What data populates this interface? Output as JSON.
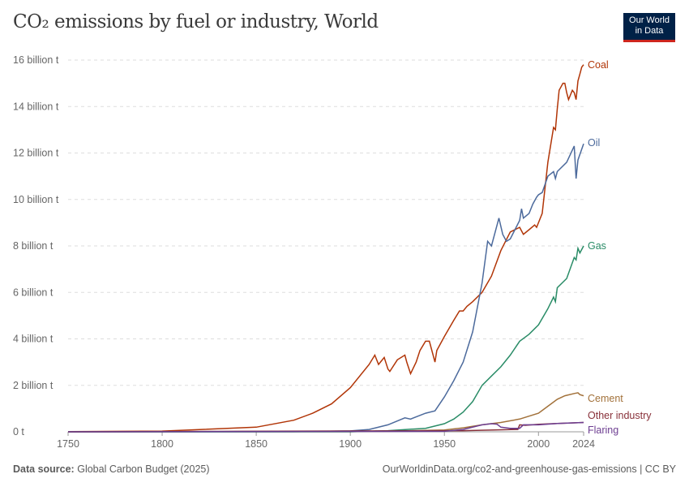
{
  "title": "CO₂ emissions by fuel or industry, World",
  "logo": {
    "line1": "Our World",
    "line2": "in Data"
  },
  "footer": {
    "source_label": "Data source:",
    "source": "Global Carbon Budget (2025)",
    "url": "OurWorldinData.org/co2-and-greenhouse-gas-emissions | CC BY"
  },
  "chart_data": {
    "type": "line",
    "title": "CO₂ emissions by fuel or industry, World",
    "xlim": [
      1750,
      2024
    ],
    "ylim": [
      0,
      16
    ],
    "x_ticks": [
      1750,
      1800,
      1850,
      1900,
      1950,
      2000,
      2024
    ],
    "y_ticks": [
      {
        "v": 0,
        "label": "0 t"
      },
      {
        "v": 2,
        "label": "2 billion t"
      },
      {
        "v": 4,
        "label": "4 billion t"
      },
      {
        "v": 6,
        "label": "6 billion t"
      },
      {
        "v": 8,
        "label": "8 billion t"
      },
      {
        "v": 10,
        "label": "10 billion t"
      },
      {
        "v": 12,
        "label": "12 billion t"
      },
      {
        "v": 14,
        "label": "14 billion t"
      },
      {
        "v": 16,
        "label": "16 billion t"
      }
    ],
    "grid": "horizontal dashed",
    "legend": "line-end labels right",
    "unit": "billion t",
    "series": [
      {
        "name": "Coal",
        "color": "#b13507",
        "points": [
          [
            1750,
            0.01
          ],
          [
            1800,
            0.03
          ],
          [
            1850,
            0.2
          ],
          [
            1870,
            0.5
          ],
          [
            1880,
            0.8
          ],
          [
            1890,
            1.2
          ],
          [
            1900,
            1.9
          ],
          [
            1910,
            2.9
          ],
          [
            1913,
            3.3
          ],
          [
            1915,
            2.9
          ],
          [
            1918,
            3.2
          ],
          [
            1920,
            2.7
          ],
          [
            1921,
            2.6
          ],
          [
            1925,
            3.1
          ],
          [
            1929,
            3.3
          ],
          [
            1930,
            3.0
          ],
          [
            1932,
            2.5
          ],
          [
            1935,
            3.0
          ],
          [
            1937,
            3.5
          ],
          [
            1940,
            3.9
          ],
          [
            1942,
            3.9
          ],
          [
            1945,
            3.0
          ],
          [
            1946,
            3.5
          ],
          [
            1950,
            4.1
          ],
          [
            1955,
            4.8
          ],
          [
            1958,
            5.2
          ],
          [
            1960,
            5.2
          ],
          [
            1962,
            5.4
          ],
          [
            1965,
            5.6
          ],
          [
            1970,
            6.0
          ],
          [
            1975,
            6.7
          ],
          [
            1980,
            7.8
          ],
          [
            1985,
            8.6
          ],
          [
            1990,
            8.8
          ],
          [
            1992,
            8.5
          ],
          [
            1995,
            8.7
          ],
          [
            1998,
            8.9
          ],
          [
            1999,
            8.8
          ],
          [
            2000,
            9.0
          ],
          [
            2002,
            9.4
          ],
          [
            2005,
            11.6
          ],
          [
            2008,
            13.1
          ],
          [
            2009,
            13.0
          ],
          [
            2010,
            13.9
          ],
          [
            2011,
            14.7
          ],
          [
            2013,
            15.0
          ],
          [
            2014,
            15.0
          ],
          [
            2015,
            14.6
          ],
          [
            2016,
            14.3
          ],
          [
            2018,
            14.7
          ],
          [
            2019,
            14.6
          ],
          [
            2020,
            14.3
          ],
          [
            2021,
            15.1
          ],
          [
            2022,
            15.4
          ],
          [
            2023,
            15.7
          ],
          [
            2024,
            15.8
          ]
        ]
      },
      {
        "name": "Oil",
        "color": "#4c6a9c",
        "points": [
          [
            1750,
            0
          ],
          [
            1870,
            0.002
          ],
          [
            1900,
            0.04
          ],
          [
            1910,
            0.1
          ],
          [
            1920,
            0.3
          ],
          [
            1929,
            0.6
          ],
          [
            1932,
            0.55
          ],
          [
            1940,
            0.8
          ],
          [
            1945,
            0.9
          ],
          [
            1950,
            1.5
          ],
          [
            1955,
            2.2
          ],
          [
            1960,
            3.0
          ],
          [
            1965,
            4.3
          ],
          [
            1970,
            6.4
          ],
          [
            1973,
            8.2
          ],
          [
            1975,
            8.0
          ],
          [
            1979,
            9.2
          ],
          [
            1981,
            8.5
          ],
          [
            1983,
            8.2
          ],
          [
            1985,
            8.3
          ],
          [
            1990,
            9.1
          ],
          [
            1991,
            9.6
          ],
          [
            1992,
            9.2
          ],
          [
            1995,
            9.4
          ],
          [
            1997,
            9.8
          ],
          [
            1999,
            10.1
          ],
          [
            2000,
            10.2
          ],
          [
            2002,
            10.3
          ],
          [
            2005,
            11.0
          ],
          [
            2008,
            11.2
          ],
          [
            2009,
            10.9
          ],
          [
            2010,
            11.2
          ],
          [
            2015,
            11.6
          ],
          [
            2019,
            12.3
          ],
          [
            2020,
            10.9
          ],
          [
            2021,
            11.7
          ],
          [
            2024,
            12.4
          ]
        ]
      },
      {
        "name": "Gas",
        "color": "#2a8c67",
        "points": [
          [
            1750,
            0
          ],
          [
            1900,
            0.0
          ],
          [
            1920,
            0.05
          ],
          [
            1930,
            0.1
          ],
          [
            1940,
            0.15
          ],
          [
            1950,
            0.35
          ],
          [
            1955,
            0.55
          ],
          [
            1960,
            0.85
          ],
          [
            1965,
            1.3
          ],
          [
            1970,
            2.0
          ],
          [
            1975,
            2.4
          ],
          [
            1980,
            2.8
          ],
          [
            1985,
            3.3
          ],
          [
            1990,
            3.9
          ],
          [
            1995,
            4.2
          ],
          [
            2000,
            4.6
          ],
          [
            2005,
            5.3
          ],
          [
            2008,
            5.8
          ],
          [
            2009,
            5.6
          ],
          [
            2010,
            6.2
          ],
          [
            2015,
            6.6
          ],
          [
            2019,
            7.5
          ],
          [
            2020,
            7.4
          ],
          [
            2021,
            7.9
          ],
          [
            2022,
            7.7
          ],
          [
            2024,
            8.0
          ]
        ]
      },
      {
        "name": "Cement",
        "color": "#a2713a",
        "points": [
          [
            1750,
            0
          ],
          [
            1920,
            0.02
          ],
          [
            1950,
            0.08
          ],
          [
            1960,
            0.17
          ],
          [
            1970,
            0.3
          ],
          [
            1980,
            0.4
          ],
          [
            1990,
            0.55
          ],
          [
            2000,
            0.8
          ],
          [
            2005,
            1.1
          ],
          [
            2010,
            1.4
          ],
          [
            2014,
            1.55
          ],
          [
            2019,
            1.65
          ],
          [
            2021,
            1.68
          ],
          [
            2022,
            1.6
          ],
          [
            2024,
            1.55
          ]
        ]
      },
      {
        "name": "Other industry",
        "color": "#883039",
        "points": [
          [
            1750,
            0
          ],
          [
            1960,
            0.05
          ],
          [
            1989,
            0.1
          ],
          [
            1990,
            0.3
          ],
          [
            1993,
            0.28
          ],
          [
            2000,
            0.32
          ],
          [
            2010,
            0.36
          ],
          [
            2024,
            0.4
          ]
        ]
      },
      {
        "name": "Flaring",
        "color": "#6d3e91",
        "points": [
          [
            1750,
            0
          ],
          [
            1950,
            0.02
          ],
          [
            1960,
            0.1
          ],
          [
            1970,
            0.3
          ],
          [
            1975,
            0.35
          ],
          [
            1978,
            0.33
          ],
          [
            1980,
            0.2
          ],
          [
            1985,
            0.15
          ],
          [
            1990,
            0.15
          ],
          [
            1992,
            0.3
          ],
          [
            2000,
            0.3
          ],
          [
            2010,
            0.36
          ],
          [
            2024,
            0.4
          ]
        ]
      }
    ]
  }
}
